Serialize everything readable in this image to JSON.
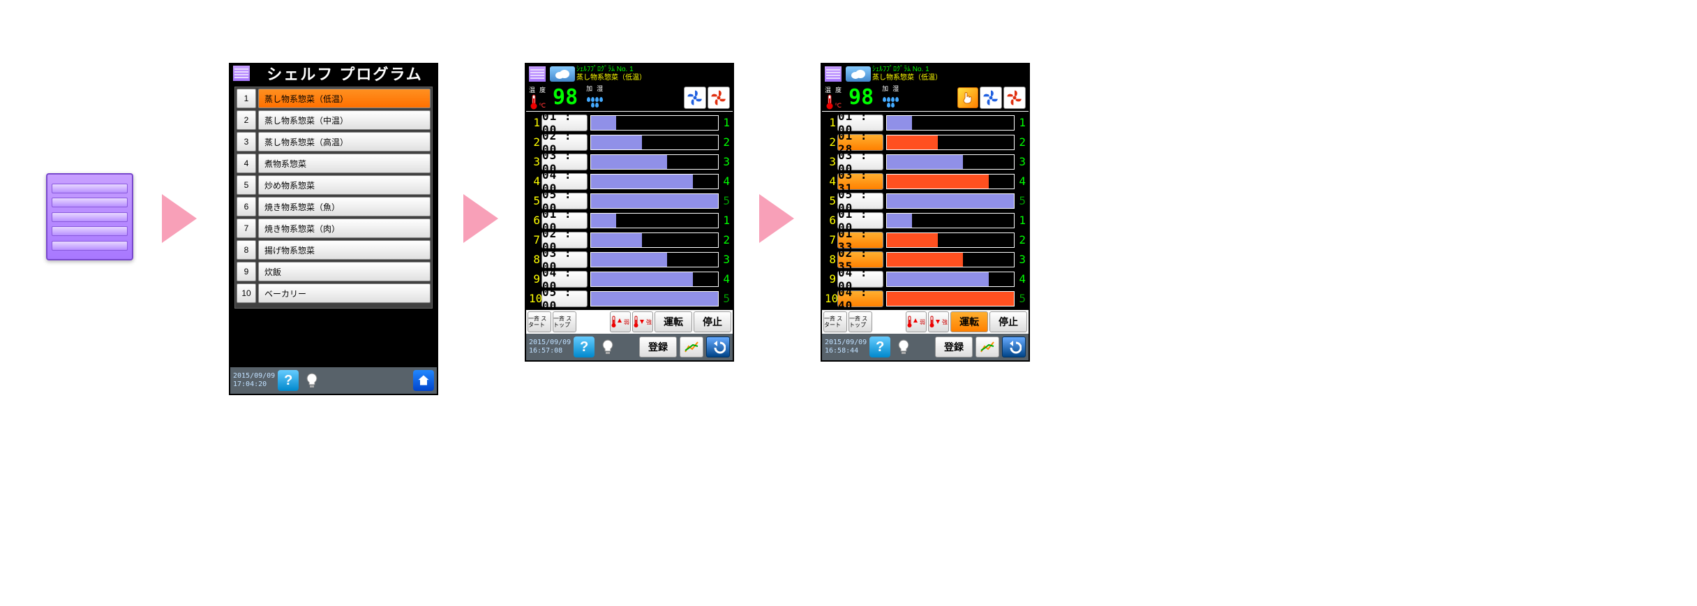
{
  "arrow_color": "#f8a0b8",
  "screen1": {
    "title": "シェルフ プログラム",
    "rows": [
      {
        "num": "1",
        "label": "蒸し物系惣菜（低温）",
        "selected": true
      },
      {
        "num": "2",
        "label": "蒸し物系惣菜（中温）",
        "selected": false
      },
      {
        "num": "3",
        "label": "蒸し物系惣菜（高温）",
        "selected": false
      },
      {
        "num": "4",
        "label": "煮物系惣菜",
        "selected": false
      },
      {
        "num": "5",
        "label": "炒め物系惣菜",
        "selected": false
      },
      {
        "num": "6",
        "label": "焼き物系惣菜（魚）",
        "selected": false
      },
      {
        "num": "7",
        "label": "焼き物系惣菜（肉）",
        "selected": false
      },
      {
        "num": "8",
        "label": "揚げ物系惣菜",
        "selected": false
      },
      {
        "num": "9",
        "label": "炊飯",
        "selected": false
      },
      {
        "num": "10",
        "label": "ベーカリー",
        "selected": false
      }
    ],
    "footer": {
      "date": "2015/09/09",
      "time": "17:04:20"
    }
  },
  "program_header": {
    "line1": "ｼｪﾙﾌﾌﾟﾛｸﾞﾗﾑ No. 1",
    "line2": "蒸し物系惣菜（低温）"
  },
  "status": {
    "temp_label1": "温",
    "temp_label2": "度",
    "temp_unit": "℃",
    "hum_label1": "加",
    "hum_label2": "湿",
    "temp_value": "98"
  },
  "controls": {
    "start": "一斉\nスタート",
    "stop": "一斉\nストップ",
    "weak": "弱",
    "strong": "強",
    "run": "運転",
    "halt": "停止",
    "register": "登録"
  },
  "screen2": {
    "show_hand": false,
    "run_active": false,
    "rows": [
      {
        "n": "1",
        "time": "01 : 00",
        "orange": false,
        "bar_pct": 20,
        "bar_color": "#9090e8",
        "right": "1",
        "right_color": "#00ff00"
      },
      {
        "n": "2",
        "time": "02 : 00",
        "orange": false,
        "bar_pct": 40,
        "bar_color": "#9090e8",
        "right": "2",
        "right_color": "#00ff00"
      },
      {
        "n": "3",
        "time": "03 : 00",
        "orange": false,
        "bar_pct": 60,
        "bar_color": "#9090e8",
        "right": "3",
        "right_color": "#00ff00"
      },
      {
        "n": "4",
        "time": "04 : 00",
        "orange": false,
        "bar_pct": 80,
        "bar_color": "#9090e8",
        "right": "4",
        "right_color": "#00ff00"
      },
      {
        "n": "5",
        "time": "05 : 00",
        "orange": false,
        "bar_pct": 100,
        "bar_color": "#9090e8",
        "right": "5",
        "right_color": "#009900"
      },
      {
        "n": "6",
        "time": "01 : 00",
        "orange": false,
        "bar_pct": 20,
        "bar_color": "#9090e8",
        "right": "1",
        "right_color": "#00ff00"
      },
      {
        "n": "7",
        "time": "02 : 00",
        "orange": false,
        "bar_pct": 40,
        "bar_color": "#9090e8",
        "right": "2",
        "right_color": "#00ff00"
      },
      {
        "n": "8",
        "time": "03 : 00",
        "orange": false,
        "bar_pct": 60,
        "bar_color": "#9090e8",
        "right": "3",
        "right_color": "#00ff00"
      },
      {
        "n": "9",
        "time": "04 : 00",
        "orange": false,
        "bar_pct": 80,
        "bar_color": "#9090e8",
        "right": "4",
        "right_color": "#00ff00"
      },
      {
        "n": "10",
        "time": "05 : 00",
        "orange": false,
        "bar_pct": 100,
        "bar_color": "#9090e8",
        "right": "5",
        "right_color": "#009900"
      }
    ],
    "footer": {
      "date": "2015/09/09",
      "time": "16:57:08"
    }
  },
  "screen3": {
    "show_hand": true,
    "run_active": true,
    "rows": [
      {
        "n": "1",
        "time": "01 : 00",
        "orange": false,
        "bar_pct": 20,
        "bar_color": "#9090e8",
        "right": "1",
        "right_color": "#00ff00"
      },
      {
        "n": "2",
        "time": "01 : 28",
        "orange": true,
        "bar_pct": 40,
        "bar_color": "#ff5020",
        "right": "2",
        "right_color": "#00ff00"
      },
      {
        "n": "3",
        "time": "03 : 00",
        "orange": false,
        "bar_pct": 60,
        "bar_color": "#9090e8",
        "right": "3",
        "right_color": "#00ff00"
      },
      {
        "n": "4",
        "time": "03 : 31",
        "orange": true,
        "bar_pct": 80,
        "bar_color": "#ff5020",
        "right": "4",
        "right_color": "#00ff00"
      },
      {
        "n": "5",
        "time": "05 : 00",
        "orange": false,
        "bar_pct": 100,
        "bar_color": "#9090e8",
        "right": "5",
        "right_color": "#009900"
      },
      {
        "n": "6",
        "time": "01 : 00",
        "orange": false,
        "bar_pct": 20,
        "bar_color": "#9090e8",
        "right": "1",
        "right_color": "#00ff00"
      },
      {
        "n": "7",
        "time": "01 : 33",
        "orange": true,
        "bar_pct": 40,
        "bar_color": "#ff5020",
        "right": "2",
        "right_color": "#00ff00"
      },
      {
        "n": "8",
        "time": "02 : 35",
        "orange": true,
        "bar_pct": 60,
        "bar_color": "#ff5020",
        "right": "3",
        "right_color": "#00ff00"
      },
      {
        "n": "9",
        "time": "04 : 00",
        "orange": false,
        "bar_pct": 80,
        "bar_color": "#9090e8",
        "right": "4",
        "right_color": "#00ff00"
      },
      {
        "n": "10",
        "time": "04 : 40",
        "orange": true,
        "bar_pct": 100,
        "bar_color": "#ff5020",
        "right": "5",
        "right_color": "#009900"
      }
    ],
    "footer": {
      "date": "2015/09/09",
      "time": "16:58:44"
    }
  },
  "colors": {
    "bg_black": "#000000",
    "accent_green": "#00ff00",
    "accent_yellow": "#ffff00",
    "bar_violet": "#9090e8",
    "bar_orange": "#ff5020",
    "btn_orange": "#ff8800",
    "footer_gray": "#58626a",
    "shelf_violet": "#a878ff"
  }
}
